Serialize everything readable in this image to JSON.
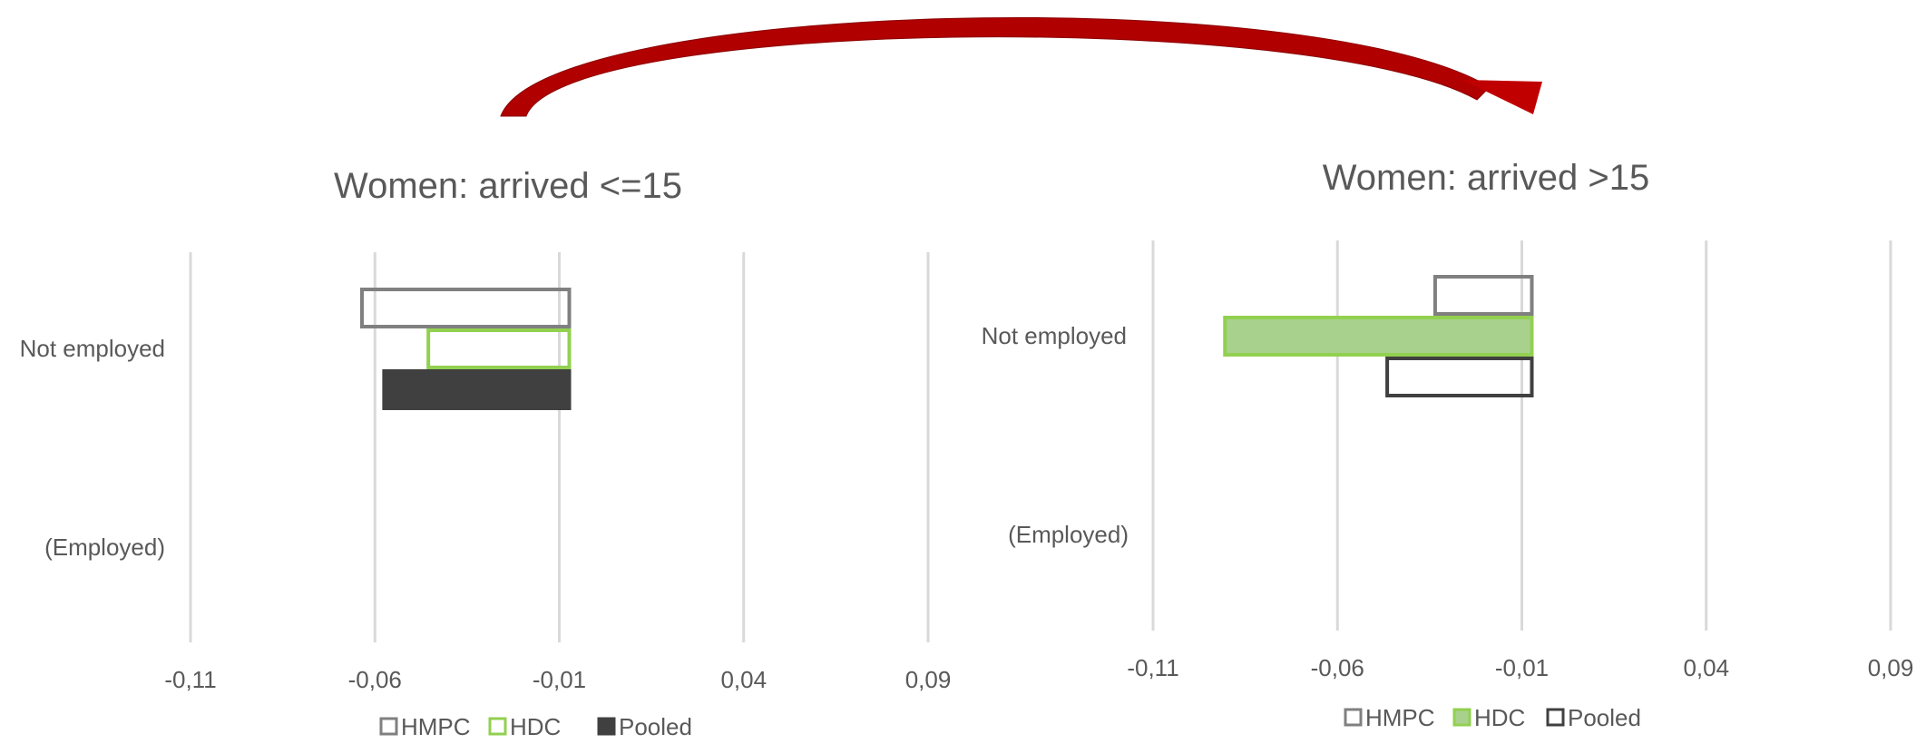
{
  "chart_data": [
    {
      "type": "bar",
      "orientation": "horizontal",
      "title": "Women: arrived  <=15",
      "categories": [
        "Not employed",
        "(Employed)"
      ],
      "xlim": [
        -0.11,
        0.09
      ],
      "xticks": [
        "-0,11",
        "-0,06",
        "-0,01",
        "0,04",
        "0,09"
      ],
      "xtick_values": [
        -0.11,
        -0.06,
        -0.01,
        0.04,
        0.09
      ],
      "grid": true,
      "legend_position": "bottom",
      "series": [
        {
          "name": "HMPC",
          "values": [
            -0.064,
            null
          ]
        },
        {
          "name": "HDC",
          "values": [
            -0.046,
            null
          ]
        },
        {
          "name": "Pooled",
          "values": [
            -0.058,
            null
          ]
        }
      ]
    },
    {
      "type": "bar",
      "orientation": "horizontal",
      "title": "Women: arrived  >15",
      "categories": [
        "Not employed",
        "(Employed)"
      ],
      "xlim": [
        -0.11,
        0.09
      ],
      "xticks": [
        "-0,11",
        "-0,06",
        "-0,01",
        "0,04",
        "0,09"
      ],
      "xtick_values": [
        -0.11,
        -0.06,
        -0.01,
        0.04,
        0.09
      ],
      "grid": true,
      "legend_position": "bottom",
      "series": [
        {
          "name": "HMPC",
          "values": [
            -0.034,
            null
          ]
        },
        {
          "name": "HDC",
          "values": [
            -0.091,
            null
          ]
        },
        {
          "name": "Pooled",
          "values": [
            -0.047,
            null
          ]
        }
      ]
    }
  ],
  "colors": {
    "HMPC": "#808080",
    "HDC": "#92d050",
    "HDC_fill_chart2": "#a9d18e",
    "Pooled": "#404040",
    "arrow": "#c00000"
  },
  "series_styles": [
    {
      "HMPC": "outline",
      "HDC": "outline",
      "Pooled": "filled"
    },
    {
      "HMPC": "outline",
      "HDC": "filled",
      "Pooled": "outline"
    }
  ]
}
